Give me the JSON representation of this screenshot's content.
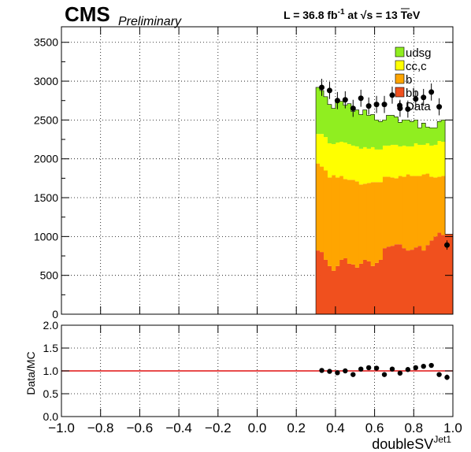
{
  "header": {
    "cms": "CMS",
    "preliminary": "Preliminary",
    "lumi_prefix": "L = 36.8 fb",
    "lumi_exp": "-1",
    "lumi_mid": " at ",
    "sqrt": "√",
    "lumi_suffix": "s = 13 TeV"
  },
  "chart_data": [
    {
      "type": "bar",
      "stacked": true,
      "xlim": [
        -1.0,
        1.0
      ],
      "ylim": [
        0,
        3700
      ],
      "yticks": [
        0,
        500,
        1000,
        1500,
        2000,
        2500,
        3000,
        3500
      ],
      "grid": true,
      "legend_position": "top-right",
      "bin_edges": [
        0.3,
        0.32,
        0.34,
        0.36,
        0.38,
        0.4,
        0.42,
        0.44,
        0.46,
        0.48,
        0.5,
        0.52,
        0.54,
        0.56,
        0.58,
        0.6,
        0.62,
        0.64,
        0.66,
        0.68,
        0.7,
        0.72,
        0.74,
        0.76,
        0.78,
        0.8,
        0.82,
        0.84,
        0.86,
        0.88,
        0.9,
        0.92,
        0.94,
        0.96,
        1.0
      ],
      "series": [
        {
          "name": "bb",
          "color": "#f0501e",
          "values": [
            820,
            800,
            700,
            620,
            560,
            620,
            700,
            720,
            650,
            640,
            600,
            650,
            700,
            680,
            620,
            660,
            700,
            850,
            870,
            880,
            900,
            900,
            850,
            820,
            830,
            860,
            880,
            820,
            890,
            950,
            1000,
            1050,
            1020,
            1030
          ]
        },
        {
          "name": "b",
          "color": "#ffa500",
          "values": [
            1120,
            1100,
            1150,
            1140,
            1230,
            1140,
            1080,
            1020,
            1080,
            1090,
            1110,
            1020,
            980,
            1010,
            1080,
            1040,
            1000,
            920,
            900,
            880,
            850,
            880,
            920,
            980,
            950,
            920,
            900,
            980,
            920,
            820,
            760,
            720,
            760,
            0
          ]
        },
        {
          "name": "cc,c",
          "color": "#ffff00",
          "values": [
            380,
            420,
            430,
            440,
            400,
            450,
            440,
            470,
            460,
            440,
            450,
            460,
            470,
            440,
            450,
            420,
            420,
            400,
            400,
            420,
            430,
            380,
            400,
            360,
            380,
            420,
            400,
            380,
            390,
            400,
            420,
            460,
            440,
            0
          ]
        },
        {
          "name": "udsg",
          "color": "#90ee20",
          "values": [
            600,
            560,
            520,
            500,
            460,
            560,
            520,
            480,
            520,
            440,
            470,
            440,
            480,
            430,
            420,
            380,
            360,
            330,
            390,
            380,
            360,
            310,
            330,
            340,
            320,
            300,
            220,
            280,
            210,
            230,
            220,
            250,
            280,
            0
          ]
        }
      ],
      "data": {
        "name": "Data",
        "x": [
          0.33,
          0.37,
          0.41,
          0.45,
          0.49,
          0.53,
          0.57,
          0.61,
          0.65,
          0.69,
          0.73,
          0.77,
          0.81,
          0.85,
          0.89,
          0.93,
          0.97
        ],
        "y": [
          2920,
          2880,
          2750,
          2760,
          2650,
          2780,
          2680,
          2700,
          2700,
          2820,
          2650,
          2640,
          2770,
          2790,
          2860,
          2670,
          890
        ],
        "err": [
          110,
          110,
          110,
          110,
          110,
          110,
          110,
          110,
          110,
          110,
          110,
          110,
          110,
          110,
          110,
          110,
          60
        ]
      }
    },
    {
      "type": "scatter",
      "xlabel": "doubleSV",
      "xlabel_sup": "Jet1",
      "ylabel": "Data/MC",
      "xlim": [
        -1.0,
        1.0
      ],
      "ylim": [
        0,
        2.0
      ],
      "yticks": [
        "0.0",
        "0.5",
        "1.0",
        "1.5",
        "2.0"
      ],
      "xticks": [
        "−1.0",
        "−0.8",
        "−0.6",
        "−0.4",
        "−0.2",
        "0.0",
        "0.2",
        "0.4",
        "0.6",
        "0.8",
        "1.0"
      ],
      "grid": true,
      "reference_line": {
        "y": 1.0,
        "color": "#e01010"
      },
      "x": [
        0.33,
        0.37,
        0.41,
        0.45,
        0.49,
        0.53,
        0.57,
        0.61,
        0.65,
        0.69,
        0.73,
        0.77,
        0.81,
        0.85,
        0.89,
        0.93,
        0.97
      ],
      "y": [
        1.01,
        0.99,
        0.96,
        1.0,
        0.92,
        1.04,
        1.07,
        1.06,
        0.92,
        1.04,
        0.95,
        1.03,
        1.07,
        1.1,
        1.12,
        0.92,
        0.86
      ],
      "err": [
        0.04,
        0.04,
        0.04,
        0.04,
        0.04,
        0.04,
        0.04,
        0.04,
        0.04,
        0.04,
        0.04,
        0.04,
        0.04,
        0.04,
        0.04,
        0.04,
        0.06
      ]
    }
  ]
}
